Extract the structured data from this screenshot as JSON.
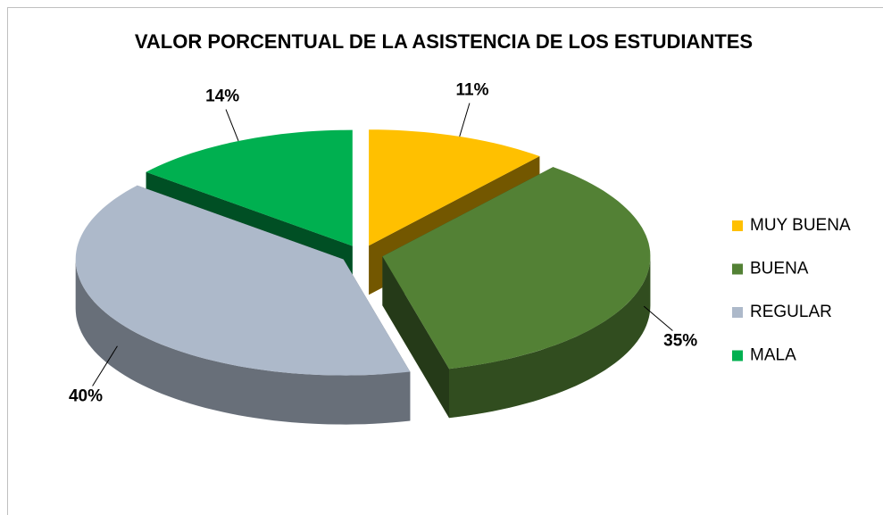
{
  "chart_data": {
    "type": "pie3d",
    "title": "VALOR PORCENTUAL DE LA ASISTENCIA DE LOS ESTUDIANTES",
    "categories": [
      "MUY BUENA",
      "BUENA",
      "REGULAR",
      "MALA"
    ],
    "values": [
      11,
      35,
      40,
      14
    ],
    "value_labels": [
      "11%",
      "35%",
      "40%",
      "14%"
    ],
    "colors": [
      "#ffc000",
      "#538135",
      "#adb9ca",
      "#00b050"
    ],
    "legend": "right"
  }
}
